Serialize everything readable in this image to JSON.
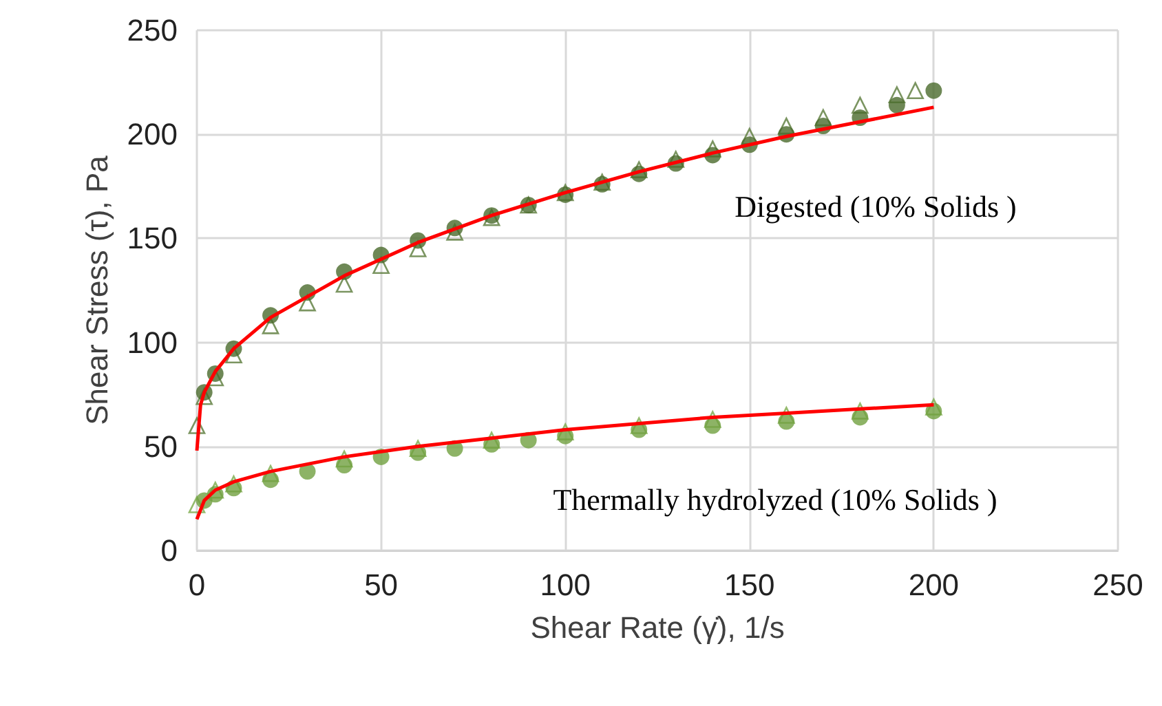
{
  "chart_data": {
    "type": "scatter",
    "xlabel": "Shear Rate (γ̇), 1/s",
    "ylabel": "Shear Stress (τ), Pa",
    "xlim": [
      0,
      250
    ],
    "xticks": [
      0,
      50,
      100,
      150,
      200,
      250
    ],
    "ylim": [
      0,
      250
    ],
    "yticks": [
      0,
      50,
      100,
      150,
      200,
      250
    ],
    "grid": true,
    "series": [
      {
        "marker": "triangle",
        "color": "#5a7a3a",
        "x": [
          0,
          2,
          5,
          10,
          20,
          30,
          40,
          50,
          60,
          70,
          80,
          90,
          100,
          110,
          120,
          130,
          140,
          150,
          160,
          170,
          180,
          190,
          195
        ],
        "values": [
          60,
          74,
          83,
          94,
          108,
          119,
          128,
          137,
          145,
          153,
          160,
          166,
          172,
          177,
          183,
          188,
          193,
          199,
          204,
          208,
          214,
          219,
          221
        ]
      },
      {
        "marker": "circle",
        "color": "#4a6a2c",
        "x": [
          2,
          5,
          10,
          20,
          30,
          40,
          50,
          60,
          70,
          80,
          90,
          100,
          110,
          120,
          130,
          140,
          150,
          160,
          170,
          180,
          190,
          200
        ],
        "values": [
          76,
          85,
          97,
          113,
          124,
          134,
          142,
          149,
          155,
          161,
          166,
          171,
          176,
          181,
          186,
          190,
          195,
          200,
          204,
          208,
          214,
          221
        ]
      },
      {
        "type": "line",
        "marker": "none",
        "color": "#ff0000",
        "x": [
          0,
          1,
          2,
          5,
          10,
          20,
          40,
          60,
          80,
          100,
          120,
          140,
          160,
          180,
          200
        ],
        "values": [
          48,
          70,
          76,
          86,
          97,
          112,
          132,
          148,
          161,
          172,
          182,
          191,
          199,
          206,
          213
        ]
      },
      {
        "marker": "triangle",
        "color": "#7aaa4a",
        "x": [
          0,
          5,
          10,
          20,
          40,
          60,
          80,
          100,
          120,
          140,
          160,
          180,
          200
        ],
        "values": [
          22,
          29,
          32,
          37,
          44,
          49,
          53,
          57,
          60,
          63,
          65,
          67,
          69
        ]
      },
      {
        "marker": "circle",
        "color": "#70a040",
        "x": [
          2,
          5,
          10,
          20,
          30,
          40,
          50,
          60,
          70,
          80,
          90,
          100,
          120,
          140,
          160,
          180,
          200
        ],
        "values": [
          24,
          27,
          30,
          34,
          38,
          41,
          45,
          47,
          49,
          51,
          53,
          55,
          58,
          60,
          62,
          64,
          67
        ]
      },
      {
        "type": "line",
        "marker": "none",
        "color": "#ff0000",
        "x": [
          0,
          2,
          5,
          10,
          20,
          40,
          60,
          80,
          100,
          120,
          140,
          160,
          180,
          200
        ],
        "values": [
          15,
          24,
          29,
          33,
          38,
          45,
          50,
          54,
          58,
          61,
          64,
          66,
          68,
          70
        ]
      }
    ],
    "annotations": [
      "Digested (10% Solids )",
      "Thermally hydrolyzed (10% Solids )"
    ]
  }
}
